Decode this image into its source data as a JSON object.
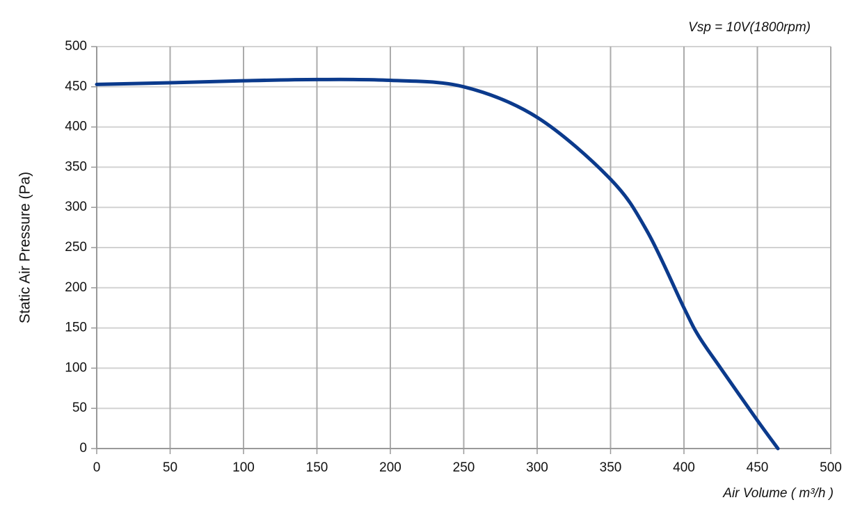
{
  "chart_data": {
    "type": "line",
    "annotation": "Vsp = 10V(1800rpm)",
    "x_label": "Air Volume ( m³/h )",
    "y_label": "Static Air Pressure  (Pa)",
    "x": [
      0,
      50,
      100,
      150,
      200,
      250,
      300,
      350,
      375,
      400,
      410,
      425,
      450,
      464
    ],
    "series": [
      {
        "name": "Vsp = 10V",
        "color": "#0b3a8c",
        "values": [
          453,
          455,
          457.5,
          459,
          458,
          450,
          412,
          335,
          270,
          175,
          140,
          100,
          35,
          0
        ]
      }
    ],
    "xlim": [
      0,
      500
    ],
    "ylim": [
      0,
      500
    ],
    "xticks": [
      0,
      50,
      100,
      150,
      200,
      250,
      300,
      350,
      400,
      450,
      500
    ],
    "yticks": [
      0,
      50,
      100,
      150,
      200,
      250,
      300,
      350,
      400,
      450,
      500
    ],
    "grid": true
  }
}
